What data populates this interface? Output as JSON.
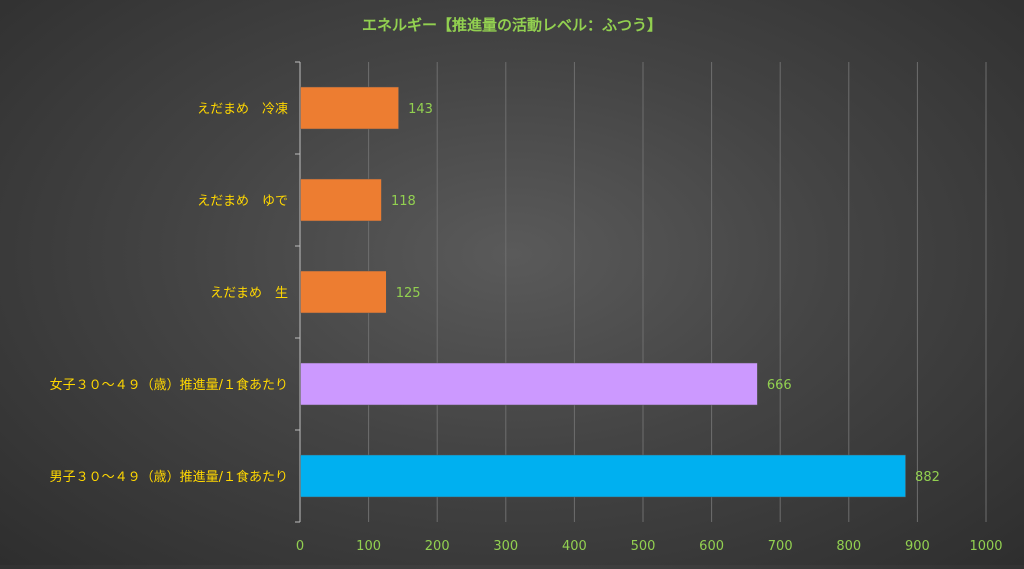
{
  "chart_data": {
    "type": "bar",
    "orientation": "horizontal",
    "title": "エネルギー【推進量の活動レベル：ふつう】",
    "categories": [
      "えだまめ　冷凍",
      "えだまめ　ゆで",
      "えだまめ　生",
      "女子３０～４９（歳）推進量/１食あたり",
      "男子３０～４９（歳）推進量/１食あたり"
    ],
    "values": [
      143,
      118,
      125,
      666,
      882
    ],
    "bar_colors": [
      "#ED7D31",
      "#ED7D31",
      "#ED7D31",
      "#CC99FF",
      "#00B0F0"
    ],
    "data_labels": [
      "143",
      "118",
      "125",
      "666",
      "882"
    ],
    "xlim": [
      0,
      1000
    ],
    "xticks": [
      "0",
      "100",
      "200",
      "300",
      "400",
      "500",
      "600",
      "700",
      "800",
      "900",
      "1000"
    ],
    "grid": true,
    "legend": "none",
    "colors": {
      "title": "#92D050",
      "category_label": "#FFD700",
      "tick_label": "#92D050",
      "data_label": "#92D050",
      "gridline": "#6e6e6e",
      "axis": "#bfbfbf"
    }
  }
}
